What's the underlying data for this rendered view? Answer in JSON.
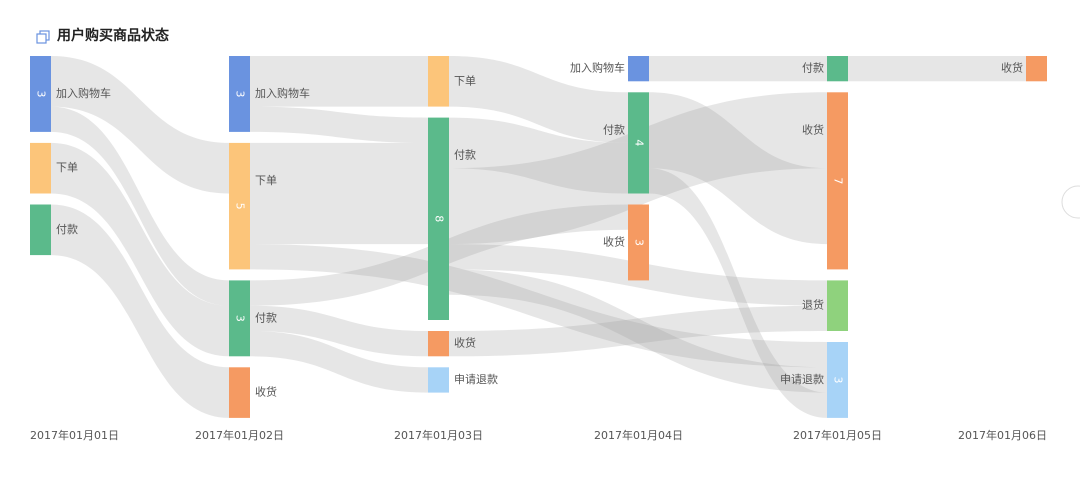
{
  "chart_data": {
    "type": "sankey",
    "title": "用户购买商品状态",
    "columns": [
      "2017年01月01日",
      "2017年01月02日",
      "2017年01月03日",
      "2017年01月04日",
      "2017年01月05日",
      "2017年01月06日"
    ],
    "nodes": [
      {
        "column": 0,
        "label": "加入购物车",
        "value": 3,
        "color": "#6a93e0"
      },
      {
        "column": 0,
        "label": "下单",
        "value": 2,
        "color": "#fcc57a"
      },
      {
        "column": 0,
        "label": "付款",
        "value": 2,
        "color": "#5bba8b"
      },
      {
        "column": 1,
        "label": "加入购物车",
        "value": 3,
        "color": "#6a93e0"
      },
      {
        "column": 1,
        "label": "下单",
        "value": 5,
        "color": "#fcc57a"
      },
      {
        "column": 1,
        "label": "付款",
        "value": 3,
        "color": "#5bba8b"
      },
      {
        "column": 1,
        "label": "收货",
        "value": 2,
        "color": "#f59a62"
      },
      {
        "column": 2,
        "label": "下单",
        "value": 2,
        "color": "#fcc57a"
      },
      {
        "column": 2,
        "label": "付款",
        "value": 8,
        "color": "#5bba8b"
      },
      {
        "column": 2,
        "label": "收货",
        "value": 1,
        "color": "#f59a62"
      },
      {
        "column": 2,
        "label": "申请退款",
        "value": 1,
        "color": "#a7d3f7"
      },
      {
        "column": 3,
        "label": "加入购物车",
        "value": 1,
        "color": "#6a93e0"
      },
      {
        "column": 3,
        "label": "付款",
        "value": 4,
        "color": "#5bba8b"
      },
      {
        "column": 3,
        "label": "收货",
        "value": 3,
        "color": "#f59a62"
      },
      {
        "column": 4,
        "label": "付款",
        "value": 1,
        "color": "#5bba8b"
      },
      {
        "column": 4,
        "label": "收货",
        "value": 7,
        "color": "#f59a62"
      },
      {
        "column": 4,
        "label": "退货",
        "value": 2,
        "color": "#8fd27d"
      },
      {
        "column": 4,
        "label": "申请退款",
        "value": 3,
        "color": "#a7d3f7"
      },
      {
        "column": 5,
        "label": "收货",
        "value": 1,
        "color": "#f59a62"
      }
    ],
    "links": [
      {
        "source": 0,
        "target": 4,
        "value": 2
      },
      {
        "source": 0,
        "target": 5,
        "value": 1
      },
      {
        "source": 1,
        "target": 5,
        "value": 2
      },
      {
        "source": 2,
        "target": 6,
        "value": 2
      },
      {
        "source": 3,
        "target": 7,
        "value": 2
      },
      {
        "source": 3,
        "target": 8,
        "value": 1
      },
      {
        "source": 4,
        "target": 8,
        "value": 4
      },
      {
        "source": 4,
        "target": 17,
        "value": 1
      },
      {
        "source": 5,
        "target": 13,
        "value": 1
      },
      {
        "source": 5,
        "target": 9,
        "value": 1
      },
      {
        "source": 5,
        "target": 10,
        "value": 1
      },
      {
        "source": 7,
        "target": 12,
        "value": 2
      },
      {
        "source": 8,
        "target": 12,
        "value": 2
      },
      {
        "source": 8,
        "target": 15,
        "value": 3
      },
      {
        "source": 8,
        "target": 16,
        "value": 1
      },
      {
        "source": 8,
        "target": 17,
        "value": 1
      },
      {
        "source": 9,
        "target": 16,
        "value": 1
      },
      {
        "source": 11,
        "target": 14,
        "value": 1
      },
      {
        "source": 12,
        "target": 15,
        "value": 3
      },
      {
        "source": 12,
        "target": 17,
        "value": 1
      },
      {
        "source": 14,
        "target": 18,
        "value": 1
      }
    ]
  }
}
